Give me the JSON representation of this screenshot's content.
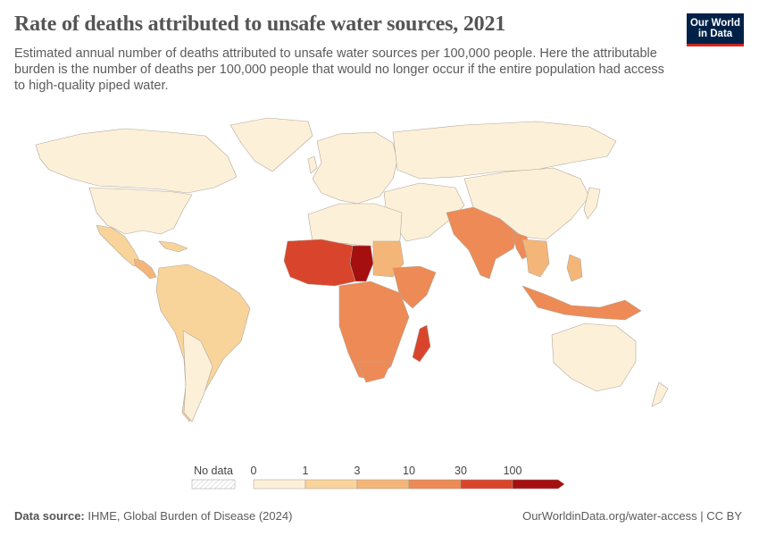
{
  "header": {
    "title": "Rate of deaths attributed to unsafe water sources, 2021",
    "subtitle": "Estimated annual number of deaths attributed to unsafe water sources per 100,000 people. Here the attributable burden is the number of deaths per 100,000 people that would no longer occur if the entire population had access to high-quality piped water."
  },
  "logo": {
    "line1": "Our World",
    "line2": "in Data"
  },
  "legend": {
    "no_data_label": "No data",
    "bins": [
      {
        "label": "0",
        "color": "#fdf0d9"
      },
      {
        "label": "1",
        "color": "#f9d49a"
      },
      {
        "label": "3",
        "color": "#f4b678"
      },
      {
        "label": "10",
        "color": "#ee8a55"
      },
      {
        "label": "30",
        "color": "#d9452c"
      },
      {
        "label": "100",
        "color": "#a50f0f"
      }
    ]
  },
  "footer": {
    "source_label": "Data source:",
    "source_text": "IHME, Global Burden of Disease (2024)",
    "url_text": "OurWorldinData.org/water-access",
    "license_text": "CC BY"
  },
  "colors": {
    "very_low": "#fdf0d9",
    "low": "#f9d49a",
    "mid_low": "#f4b678",
    "mid": "#ee8a55",
    "high": "#d9452c",
    "very_high": "#a50f0f",
    "border": "#b0a89c",
    "brand": "#002147",
    "brand_accent": "#ce261e"
  }
}
